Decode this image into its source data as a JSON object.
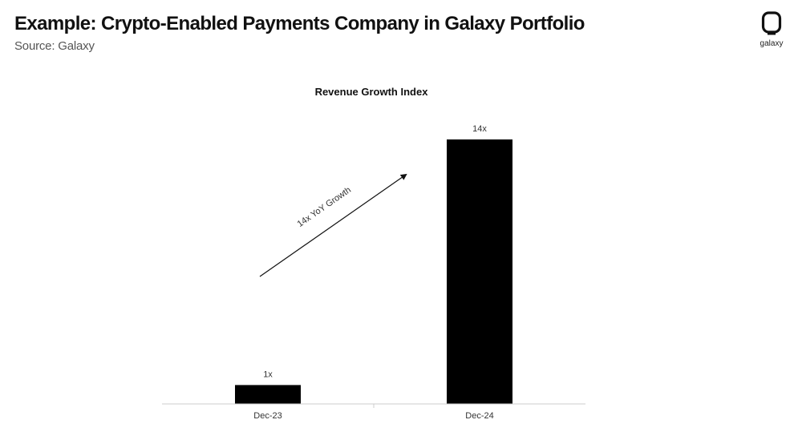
{
  "header": {
    "title": "Example: Crypto-Enabled Payments Company in Galaxy Portfolio",
    "subtitle": "Source: Galaxy"
  },
  "logo": {
    "text": "galaxy",
    "icon": "galaxy-logo-icon"
  },
  "colors": {
    "bar": "#000000",
    "axis": "#cccccc",
    "text": "#111111"
  },
  "chart_data": {
    "type": "bar",
    "title": "Revenue Growth Index",
    "categories": [
      "Dec-23",
      "Dec-24"
    ],
    "values": [
      1,
      14
    ],
    "data_labels": [
      "1x",
      "14x"
    ],
    "ylim": [
      0,
      14
    ],
    "grid": false,
    "legend": "none",
    "annotation": {
      "text": "14x YoY Growth",
      "type": "arrow"
    }
  }
}
